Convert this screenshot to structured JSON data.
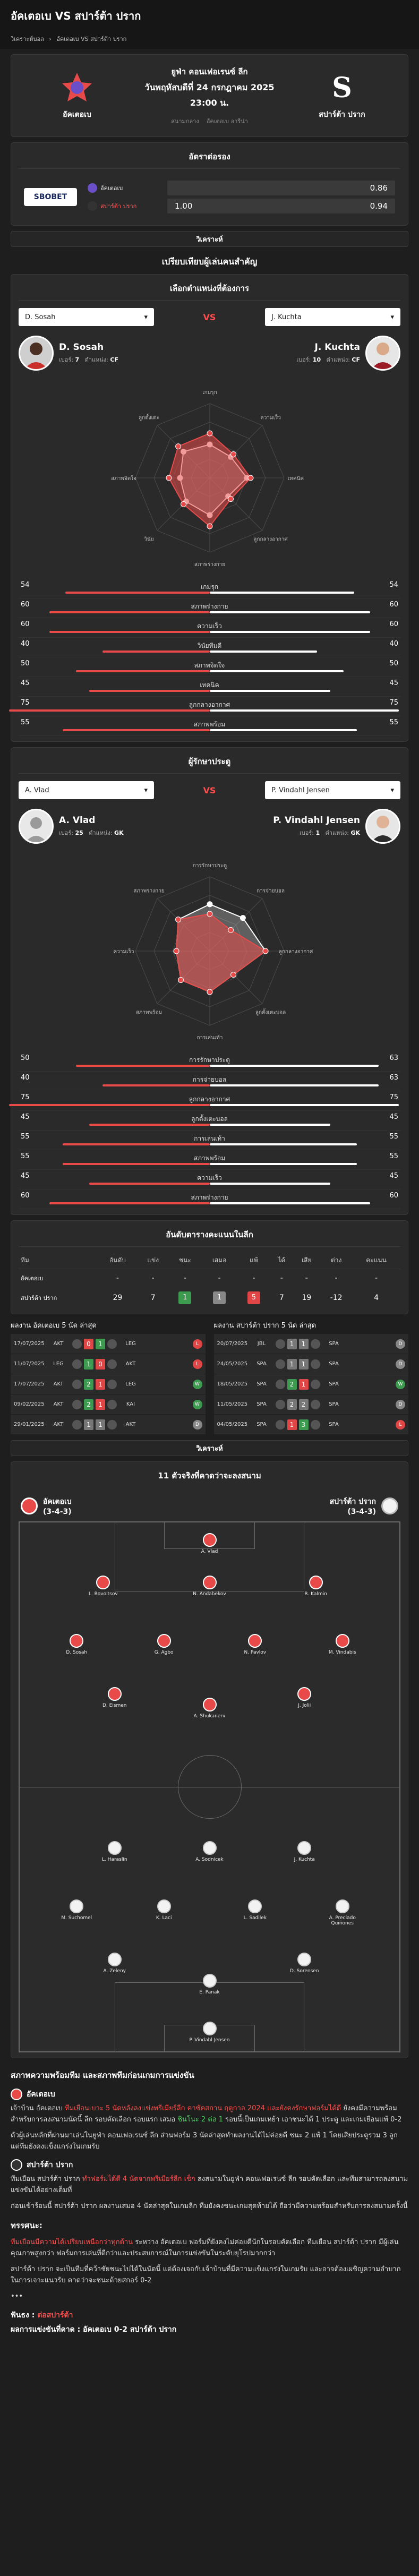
{
  "header": {
    "title": "อัคเตอเบ VS สปาร์ต้า ปราก"
  },
  "breadcrumb": [
    "วิเคราะห์บอล",
    "›",
    "อัคเตอเบ VS สปาร์ต้า ปราก"
  ],
  "match": {
    "league": "ยูฟ่า คอนเฟอเรนซ์ ลีก",
    "date": "วันพฤหัสบดีที่ 24 กรกฎาคม 2025",
    "time": "23:00 น.",
    "home": "อัคเตอเบ",
    "away": "สปาร์ต้า ปราก",
    "stadium_left": "สนามกลาง",
    "stadium_right": "อัคเตอเบ อารีน่า"
  },
  "odds": {
    "title": "อัตราต่อรอง",
    "bookmaker": "SBOBET",
    "rows": [
      {
        "team": "อัคเตอเบ",
        "handicap": "",
        "price": "0.86"
      },
      {
        "team": "สปาร์ต้า ปราก",
        "handicap": "1.00",
        "price": "0.94"
      }
    ]
  },
  "strip_label": "วิเคราะห์",
  "compare_title": "เปรียบเทียบผู้เล่นคนสำคัญ",
  "forwards": {
    "title": "เลือกตำแหน่งที่ต้องการ",
    "vs": "VS",
    "left_select": "D. Sosah",
    "right_select": "J. Kuchta",
    "left": {
      "name": "D. Sosah",
      "num_label": "เบอร์:",
      "num": "7",
      "pos_label": "ตำแหน่ง:",
      "pos": "CF"
    },
    "right": {
      "name": "J. Kuchta",
      "num_label": "เบอร์:",
      "num": "10",
      "pos_label": "ตำแหน่ง:",
      "pos": "CF"
    },
    "radar_axes": [
      "เกมรุก",
      "ความเร็ว",
      "เทคนิค",
      "ลูกกลางอากาศ",
      "สภาพร่างกาย",
      "วินัย",
      "สภาพจิตใจ",
      "ลูกตั้งเตะ"
    ],
    "stats": [
      {
        "label": "เกมรุก",
        "l": 54,
        "r": 54
      },
      {
        "label": "สภาพร่างกาย",
        "l": 60,
        "r": 60
      },
      {
        "label": "ความเร็ว",
        "l": 60,
        "r": 60
      },
      {
        "label": "วินัยทีมดี",
        "l": 40,
        "r": 40
      },
      {
        "label": "สภาพจิตใจ",
        "l": 50,
        "r": 50
      },
      {
        "label": "เทคนิค",
        "l": 45,
        "r": 45
      },
      {
        "label": "ลูกกลางอากาศ",
        "l": 75,
        "r": 75
      },
      {
        "label": "สภาพพร้อม",
        "l": 55,
        "r": 55
      }
    ]
  },
  "keepers": {
    "title": "ผู้รักษาประตู",
    "vs": "VS",
    "left_select": "A. Vlad",
    "right_select": "P. Vindahl Jensen",
    "left": {
      "name": "A. Vlad",
      "num_label": "เบอร์:",
      "num": "25",
      "pos_label": "ตำแหน่ง:",
      "pos": "GK"
    },
    "right": {
      "name": "P. Vindahl Jensen",
      "num_label": "เบอร์:",
      "num": "1",
      "pos_label": "ตำแหน่ง:",
      "pos": "GK"
    },
    "stats": [
      {
        "label": "การรักษาประตู",
        "l": 50,
        "r": 63
      },
      {
        "label": "การจ่ายบอล",
        "l": 40,
        "r": 63
      },
      {
        "label": "ลูกกลางอากาศ",
        "l": 75,
        "r": 75
      },
      {
        "label": "ลูกตั้งเตะบอล",
        "l": 45,
        "r": 45
      },
      {
        "label": "การเล่นเท้า",
        "l": 55,
        "r": 55
      },
      {
        "label": "สภาพพร้อม",
        "l": 55,
        "r": 55
      },
      {
        "label": "ความเร็ว",
        "l": 45,
        "r": 45
      },
      {
        "label": "สภาพร่างกาย",
        "l": 60,
        "r": 60
      }
    ]
  },
  "standings": {
    "title": "อันดับตารางคะแนนในลีก",
    "headers": [
      "ทีม",
      "อันดับ",
      "แข่ง",
      "ชนะ",
      "เสมอ",
      "แพ้",
      "ได้",
      "เสีย",
      "ต่าง",
      "คะแนน"
    ],
    "rows": [
      {
        "team": "อัคเตอเบ",
        "vals": [
          "-",
          "-",
          "-",
          "-",
          "-",
          "-",
          "-",
          "-",
          "-"
        ]
      },
      {
        "team": "สปาร์ต้า ปราก",
        "vals": [
          "29",
          "7",
          "1",
          "1",
          "5",
          "7",
          "19",
          "-12",
          "4"
        ]
      }
    ]
  },
  "h2h": {
    "left_title": "ผลงาน อัคเตอเบ 5 นัด ล่าสุด",
    "right_title": "ผลงาน สปาร์ต้า ปราก 5 นัด ล่าสุด",
    "left": [
      {
        "date": "17/07/2025",
        "h": "AKT",
        "hs": "0",
        "as": "1",
        "a": "LEG",
        "res": "L"
      },
      {
        "date": "11/07/2025",
        "h": "LEG",
        "hs": "1",
        "as": "0",
        "a": "AKT",
        "res": "L"
      },
      {
        "date": "17/07/2025",
        "h": "AKT",
        "hs": "2",
        "as": "1",
        "a": "LEG",
        "res": "W"
      },
      {
        "date": "09/02/2025",
        "h": "AKT",
        "hs": "2",
        "as": "1",
        "a": "KAI",
        "res": "W"
      },
      {
        "date": "29/01/2025",
        "h": "AKT",
        "hs": "1",
        "as": "1",
        "a": "AKT",
        "res": "D"
      }
    ],
    "right": [
      {
        "date": "20/07/2025",
        "h": "JBL",
        "hs": "1",
        "as": "1",
        "a": "SPA",
        "res": "D"
      },
      {
        "date": "24/05/2025",
        "h": "SPA",
        "hs": "1",
        "as": "1",
        "a": "SPA",
        "res": "D"
      },
      {
        "date": "18/05/2025",
        "h": "SPA",
        "hs": "2",
        "as": "1",
        "a": "SPA",
        "res": "W"
      },
      {
        "date": "11/05/2025",
        "h": "SPA",
        "hs": "2",
        "as": "2",
        "a": "SPA",
        "res": "D"
      },
      {
        "date": "04/05/2025",
        "h": "SPA",
        "hs": "1",
        "as": "3",
        "a": "SPA",
        "res": "L"
      }
    ]
  },
  "lineup": {
    "strip_label": "วิเคราะห์",
    "title": "11 ตัวจริงที่คาดว่าจะลงสนาม",
    "home": {
      "name": "อัคเตอเบ",
      "formation": "(3-4-3)"
    },
    "away": {
      "name": "สปาร์ต้า ปราก",
      "formation": "(3-4-3)"
    },
    "home_players": [
      "A. Vlad",
      "L. Bovoltsov",
      "N. Andabekov",
      "R. Kalmin",
      "D. Sosah",
      "G. Agbo",
      "N. Pavlov",
      "M. Vindabis",
      "D. Eismen",
      "A. Shukanerv",
      "J. Jolii"
    ],
    "away_players": [
      "L. Haraslin",
      "A. Sodnicek",
      "J. Kuchta",
      "M. Suchomel",
      "K. Laci",
      "L. Sadilek",
      "A. Preciado Quiñones",
      "A. Zeleny",
      "E. Panak",
      "D. Sorensen",
      "P. Vindahl Jensen"
    ]
  },
  "analysis": {
    "title": "สภาพความพร้อมทีม และสภาพทีมก่อนเกมการแข่งขัน",
    "home_name": "อัคเตอเบ",
    "home_text_1": "เจ้าบ้าน อัคเตอเบ ",
    "home_hl_1": "ทีมเยือนเบาะ 5 นัดหลังลงแข่งพรีเมียร์ลีก คาซัคสถาน ฤดูกาล 2024 และยังคงรักษาฟอร์มได้ดี",
    "home_text_2": " ยังคงมีความพร้อมสำหรับการลงสนามนัดนี้ ลีก รอบคัดเลือก รอบแรก เสมอ ",
    "home_hl_2": "ชินโนะ 2 ต่อ 1",
    "home_text_3": " รอบนี้เป็นเกมเหย้า เอาชนะได้ 1 ประตู และเกมเยือนแพ้ 0-2",
    "home_para_2": "ตัวผู้เล่นหลักที่ผ่านมาเล่นในยูฟ่า คอนเฟอเรนซ์ ลีก ส่วนฟอร์ม 3 นัดล่าสุดทำผลงานได้ไม่ค่อยดี ชนะ 2 แพ้ 1 โดยเสียประตูรวม 3 ลูก แต่ทีมยังคงแข็งแกร่งในเกมรับ",
    "away_name": "สปาร์ต้า ปราก",
    "away_text_1": "ทีมเยือน สปาร์ต้า ปราก ",
    "away_hl_1": "ทำฟอร์มได้ดี 4 นัดจากพรีเมียร์ลีก เช็ก",
    "away_text_2": " ลงสนามในยูฟ่า คอนเฟอเรนซ์ ลีก รอบคัดเลือก และทีมสามารถลงสนามแข่งขันได้อย่างเต็มที่",
    "away_para_2": "ก่อนเข้าร้อนนี้ สปาร์ต้า ปราก ผลงานเสมอ 4 นัดล่าสุดในเกมลีก ทีมยังคงชนะเกมสุดท้ายได้ ถือว่ามีความพร้อมสำหรับการลงสนามครั้งนี้",
    "summary_title": "ทรรศนะ:",
    "summary_hl": "ทีมเยือนมีความได้เปรียบเหนือกว่าทุกด้าน",
    "summary_text": " ระหว่าง อัคเตอเบ ฟอร์มที่ยังคงไม่ค่อยดีนักในรอบคัดเลือก ทีมเยือน สปาร์ต้า ปราก มีผู้เล่นคุณภาพสูงกว่า ฟอร์มการเล่นที่ดีกว่าและประสบการณ์ในการแข่งขันในระดับยุโรปมากกว่า",
    "summary_para_2": "สปาร์ต้า ปราก จะเป็นทีมที่คว้าชัยชนะไปได้ในนัดนี้ แต่ต้องเจอกับเจ้าบ้านที่มีความแข็งแกร่งในเกมรับ และอาจต้องเผชิญความลำบากในการเจาะแนวรับ คาดว่าจะชนะด้วยสกอร์ 0-2",
    "dots": "•••",
    "pick_label": "ฟันธง : ",
    "pick_value": "ต่อสปาร์ต้า",
    "score_label": "ผลการแข่งขันที่คาด : อัคเตอเบ 0-2 สปาร์ต้า ปราก"
  },
  "colors": {
    "home": "#e84a4a",
    "away": "#ffffff",
    "accent": "#ff4d4d"
  }
}
